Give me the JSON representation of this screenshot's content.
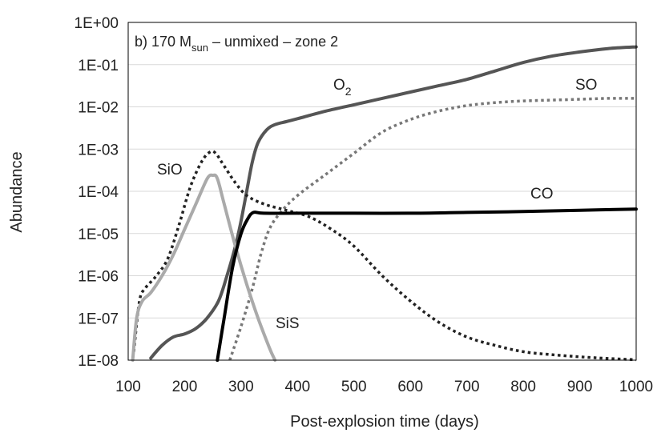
{
  "chart_data": {
    "type": "line",
    "title_prefix": "b) 170 M",
    "title_subscript": "sun",
    "title_suffix": " – unmixed – zone 2",
    "xlabel": "Post-explosion time (days)",
    "ylabel": "Abundance",
    "xlim": [
      100,
      1000
    ],
    "ylim_log10": [
      -8,
      0
    ],
    "y_scale": "log",
    "grid": true,
    "x_ticks": [
      "100",
      "200",
      "300",
      "400",
      "500",
      "600",
      "700",
      "800",
      "900",
      "1000"
    ],
    "y_ticks": [
      "1E+00",
      "1E-01",
      "1E-02",
      "1E-03",
      "1E-04",
      "1E-05",
      "1E-06",
      "1E-07",
      "1E-08"
    ],
    "colors": {
      "dark_gray": "#555555",
      "light_gray": "#aaaaaa",
      "black": "#000000",
      "grid": "#d9d9d9"
    },
    "series": [
      {
        "name": "O2",
        "label_main": "O",
        "label_sub": "2",
        "style": "solid",
        "color": "#555555",
        "points": [
          [
            140,
            -7.95
          ],
          [
            160,
            -7.65
          ],
          [
            180,
            -7.45
          ],
          [
            200,
            -7.38
          ],
          [
            220,
            -7.25
          ],
          [
            240,
            -7.0
          ],
          [
            260,
            -6.6
          ],
          [
            275,
            -6.0
          ],
          [
            290,
            -5.3
          ],
          [
            300,
            -4.7
          ],
          [
            310,
            -4.0
          ],
          [
            320,
            -3.3
          ],
          [
            330,
            -2.85
          ],
          [
            345,
            -2.55
          ],
          [
            360,
            -2.42
          ],
          [
            380,
            -2.35
          ],
          [
            400,
            -2.28
          ],
          [
            450,
            -2.1
          ],
          [
            500,
            -1.95
          ],
          [
            550,
            -1.8
          ],
          [
            600,
            -1.65
          ],
          [
            650,
            -1.5
          ],
          [
            700,
            -1.35
          ],
          [
            750,
            -1.15
          ],
          [
            800,
            -0.95
          ],
          [
            850,
            -0.8
          ],
          [
            900,
            -0.7
          ],
          [
            950,
            -0.62
          ],
          [
            1000,
            -0.58
          ]
        ]
      },
      {
        "name": "SO",
        "label_main": "SO",
        "style": "dotted",
        "color": "#777777",
        "points": [
          [
            280,
            -8.0
          ],
          [
            300,
            -7.2
          ],
          [
            320,
            -6.3
          ],
          [
            335,
            -5.5
          ],
          [
            350,
            -4.9
          ],
          [
            370,
            -4.5
          ],
          [
            400,
            -4.1
          ],
          [
            450,
            -3.6
          ],
          [
            500,
            -3.1
          ],
          [
            550,
            -2.6
          ],
          [
            600,
            -2.3
          ],
          [
            650,
            -2.1
          ],
          [
            700,
            -1.97
          ],
          [
            750,
            -1.9
          ],
          [
            800,
            -1.86
          ],
          [
            850,
            -1.84
          ],
          [
            900,
            -1.82
          ],
          [
            950,
            -1.8
          ],
          [
            1000,
            -1.8
          ]
        ]
      },
      {
        "name": "SiO",
        "label_main": "SiO",
        "style": "dotted",
        "color": "#222222",
        "points": [
          [
            110,
            -7.8
          ],
          [
            120,
            -6.6
          ],
          [
            130,
            -6.3
          ],
          [
            150,
            -6.0
          ],
          [
            170,
            -5.6
          ],
          [
            190,
            -4.8
          ],
          [
            210,
            -3.9
          ],
          [
            230,
            -3.3
          ],
          [
            245,
            -3.07
          ],
          [
            255,
            -3.1
          ],
          [
            270,
            -3.4
          ],
          [
            290,
            -3.8
          ],
          [
            310,
            -4.1
          ],
          [
            340,
            -4.3
          ],
          [
            380,
            -4.45
          ],
          [
            420,
            -4.6
          ],
          [
            460,
            -4.9
          ],
          [
            500,
            -5.3
          ],
          [
            550,
            -6.0
          ],
          [
            600,
            -6.6
          ],
          [
            650,
            -7.1
          ],
          [
            700,
            -7.45
          ],
          [
            750,
            -7.65
          ],
          [
            800,
            -7.8
          ],
          [
            850,
            -7.87
          ],
          [
            900,
            -7.92
          ],
          [
            950,
            -7.96
          ],
          [
            1000,
            -7.99
          ]
        ]
      },
      {
        "name": "SiS",
        "label_main": "SiS",
        "style": "solid",
        "color": "#aaaaaa",
        "points": [
          [
            108,
            -8.0
          ],
          [
            115,
            -7.0
          ],
          [
            125,
            -6.6
          ],
          [
            140,
            -6.4
          ],
          [
            160,
            -6.0
          ],
          [
            180,
            -5.5
          ],
          [
            200,
            -4.9
          ],
          [
            220,
            -4.3
          ],
          [
            240,
            -3.7
          ],
          [
            250,
            -3.62
          ],
          [
            258,
            -3.7
          ],
          [
            270,
            -4.3
          ],
          [
            290,
            -5.3
          ],
          [
            310,
            -6.2
          ],
          [
            330,
            -7.0
          ],
          [
            350,
            -7.7
          ],
          [
            360,
            -8.0
          ]
        ]
      },
      {
        "name": "CO",
        "label_main": "CO",
        "style": "solid",
        "color": "#000000",
        "points": [
          [
            258,
            -8.0
          ],
          [
            270,
            -7.0
          ],
          [
            285,
            -5.8
          ],
          [
            300,
            -5.0
          ],
          [
            312,
            -4.65
          ],
          [
            322,
            -4.5
          ],
          [
            340,
            -4.52
          ],
          [
            400,
            -4.52
          ],
          [
            500,
            -4.52
          ],
          [
            600,
            -4.52
          ],
          [
            700,
            -4.5
          ],
          [
            800,
            -4.48
          ],
          [
            900,
            -4.45
          ],
          [
            1000,
            -4.42
          ]
        ]
      }
    ]
  }
}
